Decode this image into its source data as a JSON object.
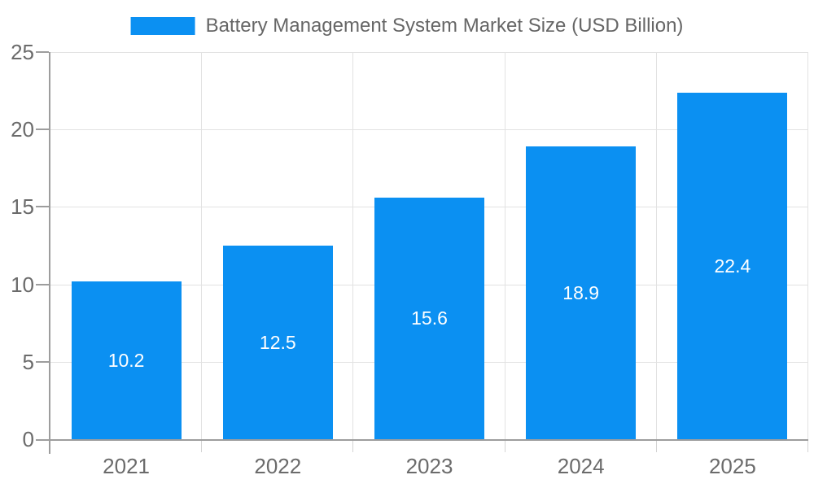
{
  "chart_data": {
    "type": "bar",
    "title": "Battery Management System Market Size (USD Billion)",
    "legend_position": "top",
    "categories": [
      "2021",
      "2022",
      "2023",
      "2024",
      "2025"
    ],
    "values": [
      10.2,
      12.5,
      15.6,
      18.9,
      22.4
    ],
    "data_labels": [
      "10.2",
      "12.5",
      "15.6",
      "18.9",
      "22.4"
    ],
    "xlabel": "",
    "ylabel": "",
    "ylim": [
      0,
      25
    ],
    "yticks": [
      0,
      5,
      10,
      15,
      20,
      25
    ],
    "grid": true,
    "colors": {
      "bar": "#0b90f2",
      "bar_label": "#ffffff",
      "axis": "#9d9d9d",
      "gridline": "#e2e2e2",
      "category_tick": "#d4d4d4",
      "tick_label": "#6b6b6b",
      "legend_text": "#666666",
      "background": "#ffffff"
    }
  }
}
